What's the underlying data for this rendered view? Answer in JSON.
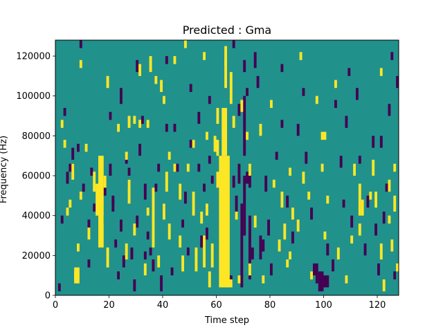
{
  "chart_data": {
    "type": "heatmap",
    "title": "Predicted : Gma",
    "xlabel": "Time step",
    "ylabel": "Frequency (Hz)",
    "xlim": [
      0,
      128
    ],
    "ylim": [
      0,
      128000
    ],
    "x_ticks": [
      0,
      20,
      40,
      60,
      80,
      100,
      120
    ],
    "y_ticks": [
      0,
      20000,
      40000,
      60000,
      80000,
      100000,
      120000
    ],
    "grid": false,
    "colormap": "viridis",
    "background_value": 0.5,
    "colors": {
      "low": "#440154",
      "mid": "#21918c",
      "high": "#fde725"
    },
    "cells_high": [
      [
        61,
        4000,
        65,
        70000
      ],
      [
        62,
        70000,
        64,
        94000
      ],
      [
        63,
        115000,
        64,
        125000
      ],
      [
        60,
        86000,
        61,
        94000
      ],
      [
        59,
        72000,
        60,
        80000
      ],
      [
        60,
        54000,
        61,
        62000
      ],
      [
        16,
        24000,
        18,
        70000
      ],
      [
        15,
        40000,
        16,
        56000
      ],
      [
        14,
        52000,
        15,
        62000
      ],
      [
        36,
        24000,
        37,
        54000
      ],
      [
        41,
        52000,
        42,
        62000
      ],
      [
        46,
        48000,
        47,
        56000
      ],
      [
        51,
        40000,
        52,
        52000
      ],
      [
        52,
        12000,
        53,
        24000
      ],
      [
        55,
        14000,
        56,
        30000
      ],
      [
        57,
        4000,
        58,
        12000
      ],
      [
        18,
        54000,
        19,
        60000
      ],
      [
        19,
        14000,
        20,
        24000
      ],
      [
        27,
        46000,
        28,
        58000
      ],
      [
        26,
        18000,
        27,
        26000
      ],
      [
        8,
        22000,
        9,
        26000
      ],
      [
        7,
        8000,
        8,
        12000
      ],
      [
        7,
        6000,
        9,
        14000
      ],
      [
        29,
        86000,
        30,
        90000
      ],
      [
        31,
        84000,
        32,
        88000
      ],
      [
        34,
        84000,
        35,
        88000
      ],
      [
        38,
        14000,
        39,
        20000
      ],
      [
        40,
        38000,
        41,
        46000
      ],
      [
        42,
        28000,
        43,
        36000
      ],
      [
        44,
        62000,
        45,
        66000
      ],
      [
        49,
        62000,
        50,
        66000
      ],
      [
        51,
        74000,
        52,
        78000
      ],
      [
        56,
        40000,
        57,
        46000
      ],
      [
        65,
        96000,
        66,
        112000
      ],
      [
        66,
        84000,
        67,
        90000
      ],
      [
        72,
        60000,
        73,
        66000
      ],
      [
        74,
        34000,
        75,
        40000
      ],
      [
        76,
        80000,
        77,
        86000
      ],
      [
        77,
        6000,
        78,
        10000
      ],
      [
        80,
        94000,
        81,
        98000
      ],
      [
        84,
        44000,
        85,
        52000
      ],
      [
        85,
        28000,
        86,
        36000
      ],
      [
        87,
        60000,
        88,
        64000
      ],
      [
        88,
        38000,
        89,
        44000
      ],
      [
        90,
        32000,
        91,
        38000
      ],
      [
        92,
        56000,
        93,
        62000
      ],
      [
        95,
        8000,
        96,
        12000
      ],
      [
        97,
        96000,
        98,
        100000
      ],
      [
        99,
        78000,
        101,
        82000
      ],
      [
        101,
        46000,
        102,
        50000
      ],
      [
        105,
        18000,
        106,
        24000
      ],
      [
        108,
        6000,
        109,
        10000
      ],
      [
        113,
        30000,
        114,
        36000
      ],
      [
        113,
        40000,
        114,
        56000
      ],
      [
        114,
        40000,
        115,
        48000
      ],
      [
        118,
        60000,
        119,
        68000
      ],
      [
        119,
        44000,
        120,
        52000
      ],
      [
        121,
        18000,
        122,
        26000
      ],
      [
        122,
        2000,
        123,
        8000
      ],
      [
        124,
        36000,
        125,
        40000
      ],
      [
        125,
        22000,
        126,
        28000
      ],
      [
        126,
        42000,
        127,
        50000
      ],
      [
        127,
        12000,
        128,
        16000
      ],
      [
        126,
        62000,
        127,
        66000
      ],
      [
        12,
        28000,
        13,
        34000
      ],
      [
        6,
        58000,
        7,
        66000
      ],
      [
        5,
        44000,
        6,
        48000
      ],
      [
        4,
        40000,
        5,
        44000
      ],
      [
        9,
        48000,
        10,
        52000
      ],
      [
        11,
        72000,
        12,
        76000
      ],
      [
        3,
        74000,
        4,
        78000
      ],
      [
        2,
        84000,
        3,
        88000
      ],
      [
        19,
        104000,
        20,
        110000
      ],
      [
        23,
        82000,
        24,
        86000
      ],
      [
        26,
        68000,
        27,
        72000
      ],
      [
        27,
        84000,
        28,
        90000
      ],
      [
        31,
        110000,
        32,
        116000
      ],
      [
        35,
        112000,
        36,
        120000
      ],
      [
        37,
        106000,
        38,
        110000
      ],
      [
        39,
        102000,
        40,
        108000
      ],
      [
        40,
        96000,
        41,
        100000
      ],
      [
        44,
        116000,
        45,
        120000
      ],
      [
        48,
        124000,
        49,
        128000
      ],
      [
        55,
        118000,
        56,
        122000
      ],
      [
        60,
        56000,
        61,
        60000
      ],
      [
        58,
        14000,
        59,
        26000
      ],
      [
        91,
        118000,
        92,
        122000
      ],
      [
        104,
        104000,
        105,
        108000
      ],
      [
        121,
        110000,
        122,
        114000
      ],
      [
        9,
        114000,
        10,
        118000
      ],
      [
        42,
        68000,
        43,
        72000
      ],
      [
        46,
        24000,
        47,
        30000
      ],
      [
        47,
        12000,
        48,
        20000
      ],
      [
        34,
        40000,
        35,
        44000
      ],
      [
        29,
        30000,
        30,
        36000
      ],
      [
        54,
        36000,
        55,
        42000
      ],
      [
        33,
        10000,
        34,
        16000
      ],
      [
        56,
        78000,
        57,
        82000
      ],
      [
        67,
        38000,
        68,
        42000
      ],
      [
        72,
        10000,
        73,
        16000
      ],
      [
        81,
        54000,
        82,
        58000
      ],
      [
        83,
        22000,
        84,
        28000
      ],
      [
        87,
        18000,
        88,
        22000
      ],
      [
        94,
        48000,
        95,
        52000
      ],
      [
        99,
        62000,
        100,
        66000
      ],
      [
        111,
        60000,
        112,
        66000
      ],
      [
        110,
        26000,
        111,
        30000
      ],
      [
        117,
        48000,
        118,
        52000
      ],
      [
        124,
        52000,
        125,
        58000
      ],
      [
        100,
        28000,
        101,
        32000
      ],
      [
        86,
        14000,
        87,
        18000
      ],
      [
        69,
        92000,
        70,
        98000
      ],
      [
        71,
        78000,
        72,
        82000
      ],
      [
        60,
        70000,
        61,
        78000
      ],
      [
        68,
        6000,
        69,
        10000
      ],
      [
        62,
        4000,
        66,
        8000
      ],
      [
        63,
        104000,
        64,
        118000
      ]
    ],
    "cells_low": [
      [
        69,
        4000,
        70,
        46000
      ],
      [
        70,
        30000,
        71,
        60000
      ],
      [
        70,
        70000,
        71,
        100000
      ],
      [
        68,
        56000,
        69,
        66000
      ],
      [
        71,
        56000,
        72,
        62000
      ],
      [
        72,
        54000,
        73,
        64000
      ],
      [
        72,
        8000,
        73,
        40000
      ],
      [
        73,
        18000,
        74,
        24000
      ],
      [
        66,
        54000,
        67,
        60000
      ],
      [
        67,
        40000,
        68,
        50000
      ],
      [
        68,
        90000,
        69,
        96000
      ],
      [
        70,
        112000,
        71,
        118000
      ],
      [
        71,
        100000,
        72,
        104000
      ],
      [
        74,
        114000,
        75,
        122000
      ],
      [
        75,
        104000,
        76,
        110000
      ],
      [
        78,
        52000,
        79,
        60000
      ],
      [
        79,
        30000,
        80,
        38000
      ],
      [
        76,
        18000,
        77,
        30000
      ],
      [
        77,
        22000,
        78,
        28000
      ],
      [
        80,
        10000,
        81,
        16000
      ],
      [
        82,
        68000,
        83,
        72000
      ],
      [
        84,
        84000,
        85,
        88000
      ],
      [
        86,
        44000,
        87,
        50000
      ],
      [
        88,
        26000,
        89,
        32000
      ],
      [
        90,
        80000,
        91,
        86000
      ],
      [
        93,
        66000,
        94,
        72000
      ],
      [
        95,
        38000,
        96,
        44000
      ],
      [
        96,
        10000,
        98,
        16000
      ],
      [
        98,
        2000,
        100,
        12000
      ],
      [
        100,
        4000,
        102,
        10000
      ],
      [
        103,
        12000,
        104,
        18000
      ],
      [
        104,
        94000,
        105,
        98000
      ],
      [
        106,
        64000,
        107,
        70000
      ],
      [
        108,
        84000,
        109,
        90000
      ],
      [
        110,
        34000,
        111,
        40000
      ],
      [
        112,
        98000,
        113,
        104000
      ],
      [
        115,
        20000,
        116,
        26000
      ],
      [
        116,
        44000,
        117,
        50000
      ],
      [
        118,
        74000,
        119,
        80000
      ],
      [
        120,
        10000,
        121,
        16000
      ],
      [
        122,
        36000,
        123,
        42000
      ],
      [
        123,
        52000,
        124,
        56000
      ],
      [
        124,
        90000,
        125,
        96000
      ],
      [
        127,
        104000,
        128,
        110000
      ],
      [
        125,
        118000,
        126,
        122000
      ],
      [
        5,
        62000,
        7,
        66000
      ],
      [
        6,
        68000,
        7,
        74000
      ],
      [
        8,
        72000,
        9,
        76000
      ],
      [
        10,
        52000,
        11,
        56000
      ],
      [
        12,
        30000,
        13,
        38000
      ],
      [
        12,
        14000,
        13,
        18000
      ],
      [
        13,
        60000,
        14,
        64000
      ],
      [
        14,
        42000,
        15,
        46000
      ],
      [
        17,
        36000,
        18,
        40000
      ],
      [
        18,
        50000,
        19,
        54000
      ],
      [
        20,
        60000,
        21,
        66000
      ],
      [
        21,
        42000,
        22,
        48000
      ],
      [
        22,
        24000,
        23,
        28000
      ],
      [
        23,
        8000,
        24,
        12000
      ],
      [
        24,
        32000,
        25,
        38000
      ],
      [
        25,
        14000,
        26,
        20000
      ],
      [
        26,
        66000,
        27,
        70000
      ],
      [
        27,
        54000,
        28,
        58000
      ],
      [
        28,
        18000,
        29,
        24000
      ],
      [
        29,
        2000,
        30,
        8000
      ],
      [
        30,
        34000,
        31,
        40000
      ],
      [
        31,
        70000,
        32,
        76000
      ],
      [
        32,
        86000,
        33,
        90000
      ],
      [
        33,
        48000,
        34,
        56000
      ],
      [
        34,
        28000,
        35,
        32000
      ],
      [
        35,
        20000,
        36,
        24000
      ],
      [
        36,
        12000,
        37,
        18000
      ],
      [
        38,
        62000,
        39,
        66000
      ],
      [
        39,
        2000,
        40,
        10000
      ],
      [
        40,
        42000,
        41,
        46000
      ],
      [
        41,
        82000,
        42,
        86000
      ],
      [
        43,
        10000,
        44,
        14000
      ],
      [
        45,
        62000,
        46,
        66000
      ],
      [
        47,
        34000,
        48,
        38000
      ],
      [
        48,
        46000,
        49,
        52000
      ],
      [
        49,
        20000,
        50,
        24000
      ],
      [
        50,
        74000,
        51,
        78000
      ],
      [
        53,
        62000,
        54,
        66000
      ],
      [
        54,
        24000,
        55,
        30000
      ],
      [
        55,
        52000,
        56,
        56000
      ],
      [
        56,
        28000,
        57,
        34000
      ],
      [
        57,
        66000,
        58,
        70000
      ],
      [
        58,
        56000,
        59,
        60000
      ],
      [
        1,
        2000,
        2,
        6000
      ],
      [
        2,
        36000,
        3,
        40000
      ],
      [
        3,
        90000,
        4,
        94000
      ],
      [
        4,
        56000,
        5,
        62000
      ],
      [
        9,
        124000,
        10,
        128000
      ],
      [
        20,
        88000,
        21,
        92000
      ],
      [
        21,
        46000,
        22,
        50000
      ],
      [
        24,
        96000,
        25,
        104000
      ],
      [
        27,
        60000,
        28,
        64000
      ],
      [
        30,
        112000,
        31,
        118000
      ],
      [
        33,
        18000,
        34,
        22000
      ],
      [
        37,
        52000,
        38,
        56000
      ],
      [
        41,
        116000,
        42,
        120000
      ],
      [
        44,
        82000,
        45,
        86000
      ],
      [
        50,
        102000,
        51,
        106000
      ],
      [
        53,
        86000,
        54,
        92000
      ],
      [
        57,
        96000,
        58,
        100000
      ],
      [
        65,
        6000,
        66,
        10000
      ],
      [
        66,
        124000,
        67,
        128000
      ],
      [
        84,
        112000,
        85,
        116000
      ],
      [
        92,
        100000,
        93,
        104000
      ],
      [
        97,
        6000,
        98,
        10000
      ],
      [
        101,
        20000,
        102,
        26000
      ],
      [
        107,
        44000,
        108,
        48000
      ],
      [
        109,
        110000,
        110,
        114000
      ],
      [
        113,
        66000,
        114,
        70000
      ],
      [
        119,
        30000,
        120,
        36000
      ],
      [
        121,
        74000,
        122,
        80000
      ],
      [
        126,
        8000,
        127,
        12000
      ]
    ]
  }
}
